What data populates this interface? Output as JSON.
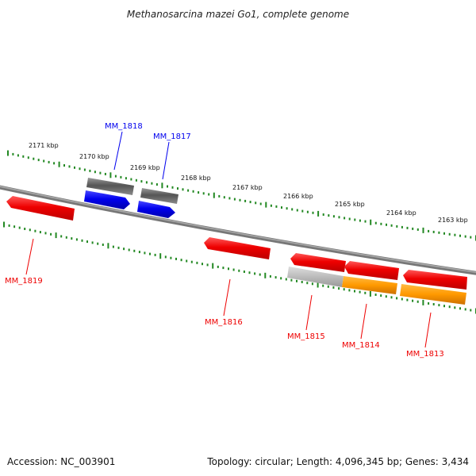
{
  "title": "Methanosarcina mazei Go1, complete genome",
  "footer": {
    "accession": "Accession: NC_003901",
    "info": "Topology: circular; Length: 4,096,345 bp; Genes: 3,434"
  },
  "kbp_labels": [
    "2171 kbp",
    "2170 kbp",
    "2169 kbp",
    "2168 kbp",
    "2167 kbp",
    "2166 kbp",
    "2165 kbp",
    "2164 kbp",
    "2163 kbp"
  ],
  "genes": [
    {
      "name": "MM_1818",
      "strand": "outer",
      "color": "#0000dd"
    },
    {
      "name": "MM_1817",
      "strand": "outer",
      "color": "#0000dd"
    },
    {
      "name": "MM_1819",
      "strand": "inner",
      "color": "#dd0000"
    },
    {
      "name": "MM_1816",
      "strand": "inner",
      "color": "#dd0000"
    },
    {
      "name": "MM_1815",
      "strand": "inner",
      "color": "#dd0000"
    },
    {
      "name": "MM_1814",
      "strand": "inner",
      "color": "#dd0000"
    },
    {
      "name": "MM_1813",
      "strand": "inner",
      "color": "#dd0000"
    }
  ],
  "colors": {
    "backbone": "#888888",
    "ticks": "#228822",
    "plus_strand": "#0000ee",
    "minus_strand": "#ee0000",
    "feature_gray": "#666666",
    "feature_light": "#bbbbbb",
    "feature_orange": "#ff9900"
  }
}
